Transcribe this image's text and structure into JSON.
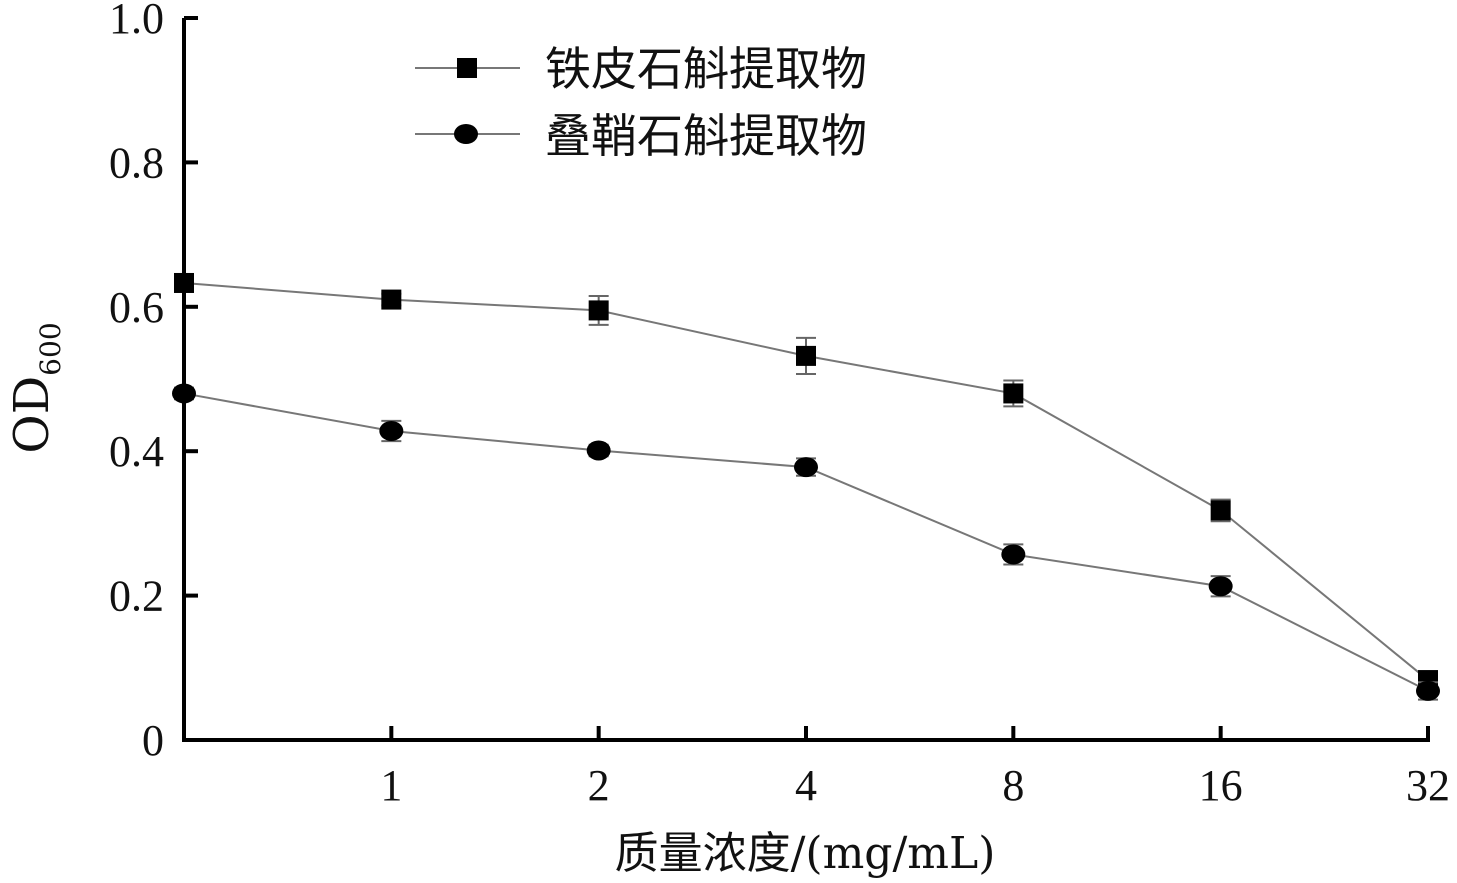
{
  "chart_data": {
    "type": "line",
    "categories": [
      "0",
      "1",
      "2",
      "4",
      "8",
      "16",
      "32"
    ],
    "x_tick_labels": [
      "1",
      "2",
      "4",
      "8",
      "16",
      "32"
    ],
    "xlabel": "质量浓度/(mg/mL)",
    "ylabel": "OD",
    "ylabel_sub": "600",
    "ylim": [
      0,
      1.0
    ],
    "y_ticks": [
      0,
      0.2,
      0.4,
      0.6,
      0.8,
      1.0
    ],
    "y_tick_labels": [
      "0",
      "0.2",
      "0.4",
      "0.6",
      "0.8",
      "1.0"
    ],
    "grid": false,
    "legend_position": "top-center",
    "series": [
      {
        "name": "铁皮石斛提取物",
        "marker": "square",
        "values": [
          0.633,
          0.61,
          0.595,
          0.532,
          0.48,
          0.318,
          0.083
        ],
        "errors": [
          0.01,
          0.008,
          0.02,
          0.025,
          0.018,
          0.015,
          0.012
        ]
      },
      {
        "name": "叠鞘石斛提取物",
        "marker": "circle",
        "values": [
          0.48,
          0.428,
          0.401,
          0.378,
          0.257,
          0.213,
          0.068
        ],
        "errors": [
          0.008,
          0.014,
          0.008,
          0.012,
          0.014,
          0.014,
          0.012
        ]
      }
    ],
    "colors": {
      "line": "#777777",
      "marker": "#000000",
      "axis": "#000000"
    }
  }
}
